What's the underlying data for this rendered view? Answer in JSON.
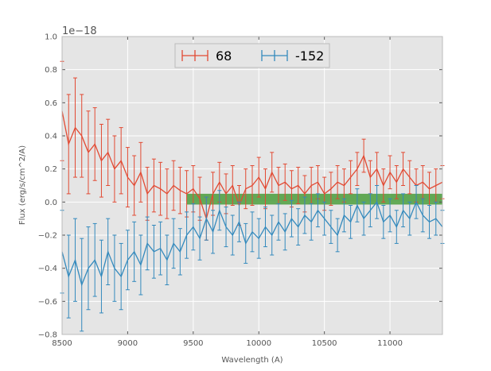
{
  "chart_data": {
    "type": "line",
    "xlabel": "Wavelength (A)",
    "ylabel": "Flux (erg/s/cm^2/A)",
    "y_offset_label": "1e−18",
    "xlim": [
      8500,
      11400
    ],
    "ylim": [
      -0.8,
      1.0
    ],
    "x_ticks": [
      8500,
      9000,
      9500,
      10000,
      10500,
      11000
    ],
    "x_tick_labels": [
      "8500",
      "9000",
      "9500",
      "10000",
      "10500",
      "11000"
    ],
    "y_ticks": [
      -0.8,
      -0.6,
      -0.4,
      -0.2,
      0.0,
      0.2,
      0.4,
      0.6,
      0.8,
      1.0
    ],
    "y_tick_labels": [
      "−0.8",
      "−0.6",
      "−0.4",
      "−0.2",
      "0.0",
      "0.2",
      "0.4",
      "0.6",
      "0.8",
      "1.0"
    ],
    "grid": true,
    "legend_position": "top-center",
    "band": {
      "x0": 9450,
      "x1": 11400,
      "y0": -0.015,
      "y1": 0.05,
      "color": "#4a9e3c"
    },
    "series": [
      {
        "name": "68",
        "color": "#e24a33",
        "x": [
          8500,
          8550,
          8600,
          8650,
          8700,
          8750,
          8800,
          8850,
          8900,
          8950,
          9000,
          9050,
          9100,
          9150,
          9200,
          9250,
          9300,
          9350,
          9400,
          9450,
          9500,
          9550,
          9600,
          9650,
          9700,
          9750,
          9800,
          9850,
          9900,
          9950,
          10000,
          10050,
          10100,
          10150,
          10200,
          10250,
          10300,
          10350,
          10400,
          10450,
          10500,
          10550,
          10600,
          10650,
          10700,
          10750,
          10800,
          10850,
          10900,
          10950,
          11000,
          11050,
          11100,
          11150,
          11200,
          11250,
          11300,
          11350,
          11400
        ],
        "y": [
          0.55,
          0.35,
          0.45,
          0.4,
          0.3,
          0.35,
          0.25,
          0.3,
          0.2,
          0.25,
          0.15,
          0.1,
          0.18,
          0.05,
          0.1,
          0.08,
          0.05,
          0.1,
          0.07,
          0.05,
          0.08,
          0.02,
          -0.1,
          0.05,
          0.12,
          0.05,
          0.1,
          -0.02,
          0.08,
          0.1,
          0.15,
          0.08,
          0.18,
          0.1,
          0.12,
          0.08,
          0.1,
          0.05,
          0.1,
          0.12,
          0.05,
          0.08,
          0.12,
          0.1,
          0.15,
          0.2,
          0.28,
          0.15,
          0.2,
          0.1,
          0.18,
          0.12,
          0.2,
          0.15,
          0.1,
          0.12,
          0.08,
          0.1,
          0.12
        ],
        "err": [
          0.3,
          0.3,
          0.3,
          0.25,
          0.25,
          0.22,
          0.22,
          0.2,
          0.2,
          0.2,
          0.18,
          0.18,
          0.18,
          0.16,
          0.16,
          0.16,
          0.15,
          0.15,
          0.14,
          0.14,
          0.14,
          0.13,
          0.13,
          0.13,
          0.12,
          0.12,
          0.12,
          0.12,
          0.12,
          0.12,
          0.12,
          0.12,
          0.12,
          0.11,
          0.11,
          0.11,
          0.11,
          0.11,
          0.11,
          0.1,
          0.1,
          0.1,
          0.1,
          0.1,
          0.1,
          0.1,
          0.1,
          0.1,
          0.1,
          0.1,
          0.1,
          0.1,
          0.1,
          0.1,
          0.1,
          0.1,
          0.1,
          0.1,
          0.1
        ]
      },
      {
        "name": "-152",
        "color": "#348abd",
        "x": [
          8500,
          8550,
          8600,
          8650,
          8700,
          8750,
          8800,
          8850,
          8900,
          8950,
          9000,
          9050,
          9100,
          9150,
          9200,
          9250,
          9300,
          9350,
          9400,
          9450,
          9500,
          9550,
          9600,
          9650,
          9700,
          9750,
          9800,
          9850,
          9900,
          9950,
          10000,
          10050,
          10100,
          10150,
          10200,
          10250,
          10300,
          10350,
          10400,
          10450,
          10500,
          10550,
          10600,
          10650,
          10700,
          10750,
          10800,
          10850,
          10900,
          10950,
          11000,
          11050,
          11100,
          11150,
          11200,
          11250,
          11300,
          11350,
          11400
        ],
        "y": [
          -0.3,
          -0.45,
          -0.35,
          -0.5,
          -0.4,
          -0.35,
          -0.45,
          -0.3,
          -0.4,
          -0.45,
          -0.35,
          -0.3,
          -0.38,
          -0.25,
          -0.3,
          -0.28,
          -0.35,
          -0.25,
          -0.3,
          -0.2,
          -0.15,
          -0.22,
          -0.1,
          -0.18,
          -0.05,
          -0.15,
          -0.2,
          -0.12,
          -0.25,
          -0.18,
          -0.22,
          -0.15,
          -0.2,
          -0.12,
          -0.18,
          -0.1,
          -0.15,
          -0.08,
          -0.12,
          -0.05,
          -0.1,
          -0.15,
          -0.2,
          -0.08,
          -0.12,
          -0.02,
          -0.1,
          -0.05,
          0.0,
          -0.12,
          -0.08,
          -0.15,
          -0.05,
          -0.1,
          0.0,
          -0.08,
          -0.12,
          -0.1,
          -0.15
        ],
        "err": [
          0.25,
          0.25,
          0.25,
          0.28,
          0.25,
          0.22,
          0.22,
          0.2,
          0.2,
          0.2,
          0.18,
          0.18,
          0.18,
          0.16,
          0.16,
          0.16,
          0.15,
          0.15,
          0.14,
          0.14,
          0.14,
          0.13,
          0.13,
          0.13,
          0.12,
          0.12,
          0.12,
          0.12,
          0.12,
          0.12,
          0.12,
          0.12,
          0.12,
          0.11,
          0.11,
          0.11,
          0.11,
          0.11,
          0.11,
          0.1,
          0.1,
          0.1,
          0.1,
          0.1,
          0.1,
          0.1,
          0.1,
          0.1,
          0.1,
          0.1,
          0.1,
          0.1,
          0.1,
          0.1,
          0.1,
          0.1,
          0.1,
          0.1,
          0.1
        ]
      }
    ]
  }
}
